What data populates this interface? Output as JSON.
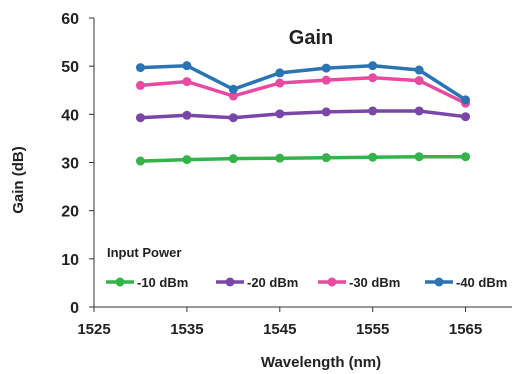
{
  "chart_data": {
    "type": "line",
    "title": "Gain",
    "xlabel": "Wavelength (nm)",
    "ylabel": "Gain (dB)",
    "xlim": [
      1525,
      1570
    ],
    "ylim": [
      0,
      60
    ],
    "x_ticks": [
      1525,
      1535,
      1545,
      1555,
      1565
    ],
    "y_ticks": [
      0,
      10,
      20,
      30,
      40,
      50,
      60
    ],
    "x_tick_labels": [
      "1525",
      "1535",
      "1545",
      "1555",
      "1565"
    ],
    "y_tick_labels": [
      "0",
      "10",
      "20",
      "30",
      "40",
      "50",
      "60"
    ],
    "grid": false,
    "legend_title": "Input Power",
    "legend_position": "bottom",
    "x": [
      1530,
      1535,
      1540,
      1545,
      1550,
      1555,
      1560,
      1565
    ],
    "series": [
      {
        "name": "-10 dBm",
        "color": "#33b34a",
        "values": [
          30.3,
          30.6,
          30.8,
          30.9,
          31.0,
          31.1,
          31.2,
          31.2
        ]
      },
      {
        "name": "-20 dBm",
        "color": "#7a47a8",
        "values": [
          39.3,
          39.8,
          39.3,
          40.1,
          40.5,
          40.7,
          40.7,
          39.5
        ]
      },
      {
        "name": "-30 dBm",
        "color": "#e84aa1",
        "values": [
          46.0,
          46.8,
          43.8,
          46.5,
          47.1,
          47.6,
          47.0,
          42.3
        ]
      },
      {
        "name": "-40 dBm",
        "color": "#2a74b4",
        "values": [
          49.7,
          50.1,
          45.2,
          48.6,
          49.6,
          50.1,
          49.2,
          43.0
        ]
      }
    ]
  }
}
